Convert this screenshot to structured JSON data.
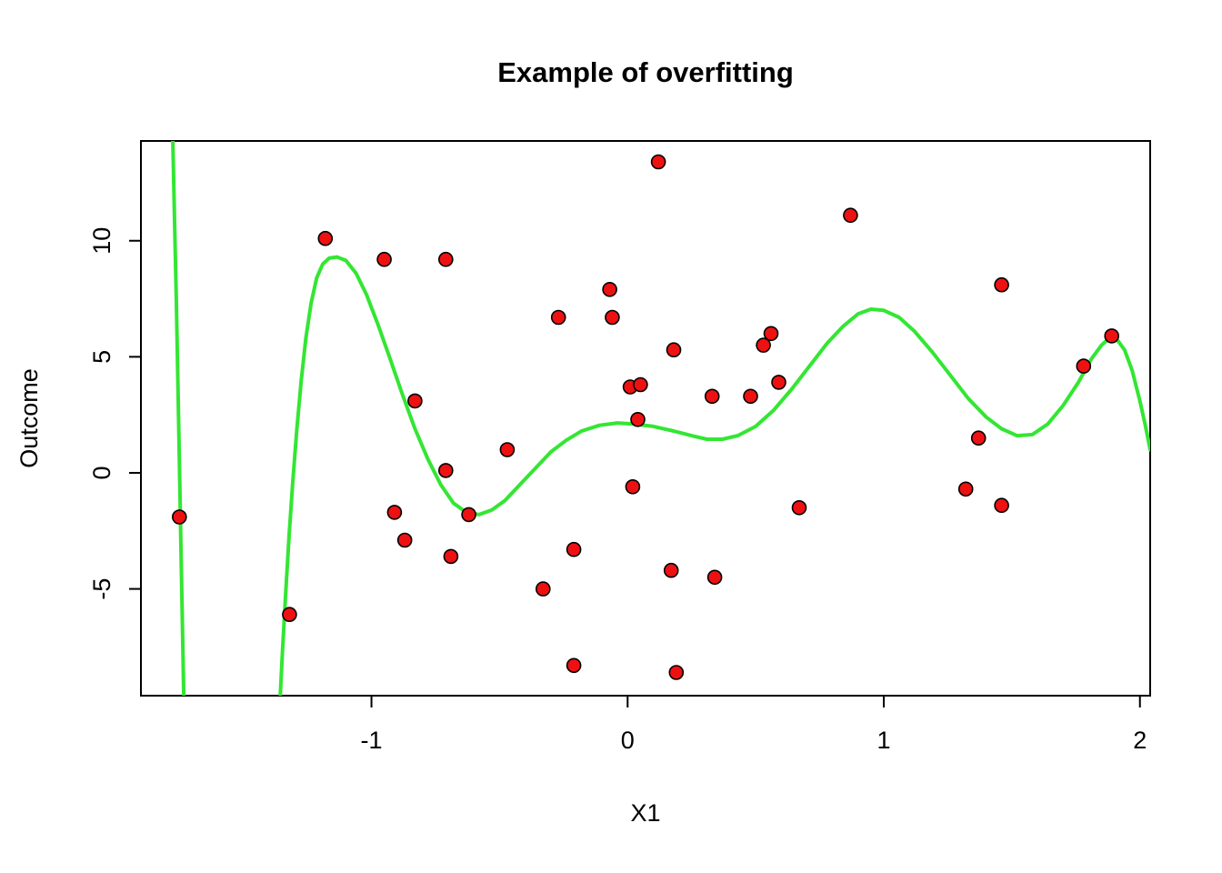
{
  "chart_data": {
    "type": "scatter",
    "title": "Example of overfitting",
    "xlabel": "X1",
    "ylabel": "Outcome",
    "xlim": [
      -1.9,
      2.04
    ],
    "ylim": [
      -9.6,
      14.3
    ],
    "x_ticks": [
      -1,
      0,
      1,
      2
    ],
    "y_ticks": [
      -5,
      0,
      5,
      10
    ],
    "grid": false,
    "legend": null,
    "colors": {
      "points_fill": "#ee1111",
      "points_stroke": "#000000",
      "curve": "#33e633",
      "frame": "#000000",
      "background": "#ffffff"
    },
    "series": [
      {
        "name": "observations",
        "type": "scatter"
      },
      {
        "name": "overfit-polynomial-fit",
        "type": "line"
      }
    ],
    "points": [
      [
        -1.75,
        -1.9
      ],
      [
        -1.32,
        -6.1
      ],
      [
        -1.18,
        10.1
      ],
      [
        -0.95,
        9.2
      ],
      [
        -0.91,
        -1.7
      ],
      [
        -0.87,
        -2.9
      ],
      [
        -0.83,
        3.1
      ],
      [
        -0.71,
        9.2
      ],
      [
        -0.71,
        0.1
      ],
      [
        -0.69,
        -3.6
      ],
      [
        -0.62,
        -1.8
      ],
      [
        -0.47,
        1.0
      ],
      [
        -0.33,
        -5.0
      ],
      [
        -0.27,
        6.7
      ],
      [
        -0.21,
        -3.3
      ],
      [
        -0.21,
        -8.3
      ],
      [
        -0.07,
        7.9
      ],
      [
        -0.06,
        6.7
      ],
      [
        0.01,
        3.7
      ],
      [
        0.05,
        3.8
      ],
      [
        0.04,
        2.3
      ],
      [
        0.02,
        -0.6
      ],
      [
        0.12,
        13.4
      ],
      [
        0.18,
        5.3
      ],
      [
        0.17,
        -4.2
      ],
      [
        0.19,
        -8.6
      ],
      [
        0.33,
        3.3
      ],
      [
        0.34,
        -4.5
      ],
      [
        0.48,
        3.3
      ],
      [
        0.53,
        5.5
      ],
      [
        0.56,
        6.0
      ],
      [
        0.59,
        3.9
      ],
      [
        0.67,
        -1.5
      ],
      [
        0.87,
        11.1
      ],
      [
        1.32,
        -0.7
      ],
      [
        1.37,
        1.5
      ],
      [
        1.46,
        8.1
      ],
      [
        1.46,
        -1.4
      ],
      [
        1.78,
        4.6
      ],
      [
        1.89,
        5.9
      ]
    ],
    "curve_segments": [
      [
        [
          -1.776,
          14.6
        ],
        [
          -1.769,
          11.0
        ],
        [
          -1.762,
          7.5
        ],
        [
          -1.756,
          4.0
        ],
        [
          -1.75,
          0.5
        ],
        [
          -1.744,
          -3.0
        ],
        [
          -1.738,
          -6.5
        ],
        [
          -1.732,
          -10.0
        ]
      ],
      [
        [
          -1.358,
          -10.0
        ],
        [
          -1.347,
          -7.6
        ],
        [
          -1.335,
          -5.2
        ],
        [
          -1.322,
          -2.8
        ],
        [
          -1.308,
          -0.5
        ],
        [
          -1.292,
          1.8
        ],
        [
          -1.275,
          3.9
        ],
        [
          -1.256,
          5.8
        ],
        [
          -1.236,
          7.3
        ],
        [
          -1.214,
          8.4
        ],
        [
          -1.19,
          9.0
        ],
        [
          -1.165,
          9.25
        ],
        [
          -1.135,
          9.3
        ],
        [
          -1.1,
          9.15
        ],
        [
          -1.06,
          8.6
        ],
        [
          -1.02,
          7.7
        ],
        [
          -0.975,
          6.4
        ],
        [
          -0.93,
          5.0
        ],
        [
          -0.88,
          3.4
        ],
        [
          -0.83,
          1.9
        ],
        [
          -0.78,
          0.6
        ],
        [
          -0.73,
          -0.5
        ],
        [
          -0.68,
          -1.3
        ],
        [
          -0.63,
          -1.7
        ],
        [
          -0.58,
          -1.8
        ],
        [
          -0.53,
          -1.6
        ],
        [
          -0.48,
          -1.2
        ],
        [
          -0.42,
          -0.5
        ],
        [
          -0.36,
          0.2
        ],
        [
          -0.3,
          0.9
        ],
        [
          -0.24,
          1.4
        ],
        [
          -0.18,
          1.8
        ],
        [
          -0.11,
          2.05
        ],
        [
          -0.04,
          2.15
        ],
        [
          0.03,
          2.1
        ],
        [
          0.1,
          2.0
        ],
        [
          0.18,
          1.8
        ],
        [
          0.25,
          1.6
        ],
        [
          0.31,
          1.45
        ],
        [
          0.37,
          1.45
        ],
        [
          0.43,
          1.6
        ],
        [
          0.5,
          2.0
        ],
        [
          0.57,
          2.7
        ],
        [
          0.64,
          3.6
        ],
        [
          0.71,
          4.6
        ],
        [
          0.78,
          5.6
        ],
        [
          0.84,
          6.3
        ],
        [
          0.9,
          6.85
        ],
        [
          0.95,
          7.05
        ],
        [
          1.0,
          7.0
        ],
        [
          1.06,
          6.7
        ],
        [
          1.12,
          6.1
        ],
        [
          1.19,
          5.2
        ],
        [
          1.26,
          4.2
        ],
        [
          1.33,
          3.2
        ],
        [
          1.4,
          2.4
        ],
        [
          1.46,
          1.9
        ],
        [
          1.52,
          1.6
        ],
        [
          1.58,
          1.65
        ],
        [
          1.64,
          2.1
        ],
        [
          1.7,
          2.9
        ],
        [
          1.76,
          3.9
        ],
        [
          1.81,
          4.9
        ],
        [
          1.85,
          5.5
        ],
        [
          1.88,
          5.8
        ],
        [
          1.91,
          5.75
        ],
        [
          1.94,
          5.3
        ],
        [
          1.97,
          4.4
        ],
        [
          2.0,
          3.1
        ],
        [
          2.02,
          2.1
        ],
        [
          2.04,
          1.0
        ]
      ]
    ]
  }
}
